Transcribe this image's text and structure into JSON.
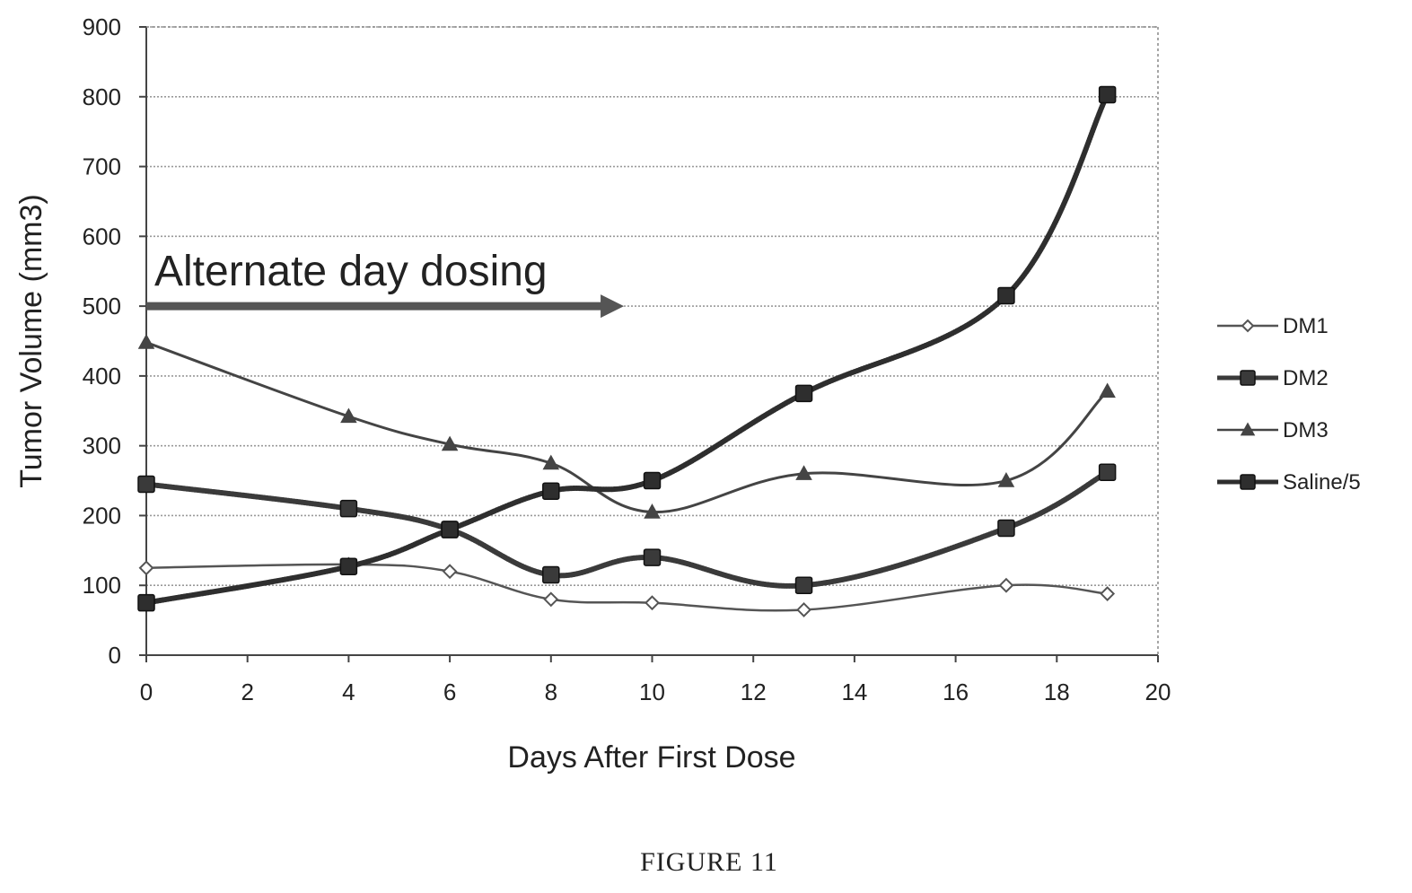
{
  "chart_data": {
    "type": "line",
    "xlabel": "Days After First Dose",
    "ylabel": "Tumor Volume (mm3)",
    "xlim": [
      0,
      20
    ],
    "ylim": [
      0,
      900
    ],
    "x_ticks": [
      "0",
      "2",
      "4",
      "6",
      "8",
      "10",
      "12",
      "14",
      "16",
      "18",
      "20"
    ],
    "y_ticks": [
      "0",
      "100",
      "200",
      "300",
      "400",
      "500",
      "600",
      "700",
      "800",
      "900"
    ],
    "grid": "horizontal",
    "legend_position": "right",
    "annotation": {
      "text": "Alternate day dosing",
      "arrow_from": [
        0,
        500
      ],
      "arrow_to": [
        9.3,
        500
      ]
    },
    "series": [
      {
        "name": "DM1",
        "marker": "diamond",
        "color": "#555555",
        "x": [
          0,
          4,
          6,
          8,
          10,
          13,
          17,
          19
        ],
        "y": [
          125,
          130,
          120,
          80,
          75,
          65,
          100,
          88
        ]
      },
      {
        "name": "DM2",
        "marker": "square",
        "color": "#3a3a3a",
        "x": [
          0,
          4,
          6,
          8,
          10,
          13,
          17,
          19
        ],
        "y": [
          245,
          210,
          180,
          115,
          140,
          100,
          182,
          262
        ]
      },
      {
        "name": "DM3",
        "marker": "triangle",
        "color": "#444444",
        "x": [
          0,
          4,
          6,
          8,
          10,
          13,
          17,
          19
        ],
        "y": [
          448,
          342,
          302,
          275,
          205,
          260,
          250,
          378
        ]
      },
      {
        "name": "Saline/5",
        "marker": "square",
        "color": "#2e2e2e",
        "x": [
          0,
          4,
          6,
          8,
          10,
          13,
          17,
          19
        ],
        "y": [
          75,
          127,
          180,
          235,
          250,
          375,
          515,
          803
        ]
      }
    ]
  },
  "caption": "FIGURE 11"
}
